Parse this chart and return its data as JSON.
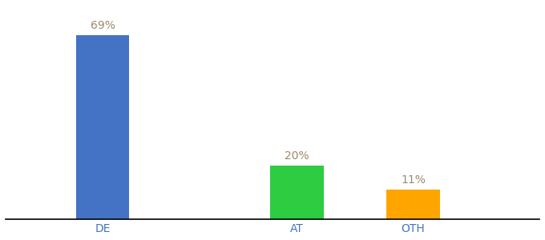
{
  "categories": [
    "DE",
    "AT",
    "OTH"
  ],
  "values": [
    69,
    20,
    11
  ],
  "bar_colors": [
    "#4472C4",
    "#2ECC40",
    "#FFA500"
  ],
  "label_color": "#A0896A",
  "axis_label_color": "#4472C4",
  "background_color": "#ffffff",
  "ylim": [
    0,
    80
  ],
  "bar_width": 0.55,
  "label_fontsize": 10,
  "tick_fontsize": 10,
  "x_positions": [
    1,
    3,
    4.2
  ],
  "xlim": [
    0.0,
    5.5
  ]
}
